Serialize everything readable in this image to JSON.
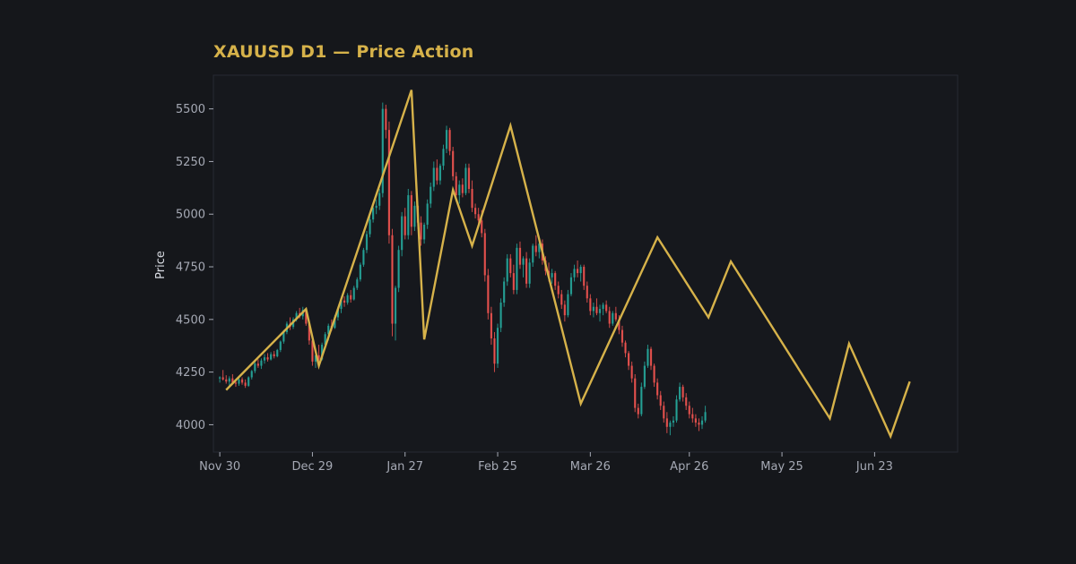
{
  "colors": {
    "background": "#15171b",
    "plot_background": "#16181d",
    "plot_border": "#262a33",
    "title": "#d6b24a",
    "tick_label": "#a5a9b4",
    "up_candle": "#26a69a",
    "down_candle": "#ef5350",
    "swing_line": "#d6b24a"
  },
  "chart_data": {
    "type": "line",
    "title": "XAUUSD D1 — Price Action",
    "ylabel": "Price",
    "xlabel": "",
    "ylim": [
      3870,
      5660
    ],
    "y_ticks": [
      4000,
      4250,
      4500,
      4750,
      5000,
      5250,
      5500
    ],
    "x_ticks": [
      {
        "label": "Nov 30",
        "day": 0
      },
      {
        "label": "Dec 29",
        "day": 29
      },
      {
        "label": "Jan 27",
        "day": 58
      },
      {
        "label": "Feb 25",
        "day": 87
      },
      {
        "label": "Mar 26",
        "day": 116
      },
      {
        "label": "Apr 26",
        "day": 147
      },
      {
        "label": "May 25",
        "day": 176
      },
      {
        "label": "Jun 23",
        "day": 205
      }
    ],
    "xlim_days": [
      -2,
      231
    ],
    "grid": false,
    "series": [
      {
        "kind": "zigzag",
        "points": [
          {
            "day": 2,
            "price": 4165
          },
          {
            "day": 27,
            "price": 4550
          },
          {
            "day": 31,
            "price": 4280
          },
          {
            "day": 60,
            "price": 5590
          },
          {
            "day": 64,
            "price": 4405
          },
          {
            "day": 73,
            "price": 5115
          },
          {
            "day": 79,
            "price": 4850
          },
          {
            "day": 91,
            "price": 5420
          },
          {
            "day": 113,
            "price": 4100
          },
          {
            "day": 137,
            "price": 4890
          },
          {
            "day": 153,
            "price": 4510
          },
          {
            "day": 160,
            "price": 4775
          },
          {
            "day": 191,
            "price": 4030
          },
          {
            "day": 197,
            "price": 4385
          },
          {
            "day": 210,
            "price": 3945
          },
          {
            "day": 216,
            "price": 4205
          }
        ]
      },
      {
        "kind": "candlestick",
        "start_day": 0,
        "candles": [
          [
            4220,
            4230,
            4200,
            4225
          ],
          [
            4225,
            4260,
            4210,
            4215
          ],
          [
            4215,
            4235,
            4195,
            4205
          ],
          [
            4205,
            4230,
            4185,
            4220
          ],
          [
            4220,
            4240,
            4195,
            4200
          ],
          [
            4200,
            4215,
            4180,
            4195
          ],
          [
            4195,
            4225,
            4185,
            4215
          ],
          [
            4215,
            4225,
            4190,
            4200
          ],
          [
            4200,
            4215,
            4175,
            4185
          ],
          [
            4185,
            4230,
            4180,
            4225
          ],
          [
            4225,
            4260,
            4215,
            4255
          ],
          [
            4255,
            4300,
            4245,
            4290
          ],
          [
            4290,
            4310,
            4270,
            4280
          ],
          [
            4280,
            4315,
            4265,
            4305
          ],
          [
            4305,
            4335,
            4290,
            4320
          ],
          [
            4320,
            4340,
            4300,
            4310
          ],
          [
            4310,
            4345,
            4305,
            4335
          ],
          [
            4335,
            4350,
            4315,
            4325
          ],
          [
            4325,
            4360,
            4320,
            4355
          ],
          [
            4355,
            4400,
            4345,
            4395
          ],
          [
            4395,
            4450,
            4385,
            4440
          ],
          [
            4440,
            4490,
            4430,
            4480
          ],
          [
            4480,
            4510,
            4450,
            4465
          ],
          [
            4465,
            4510,
            4455,
            4500
          ],
          [
            4500,
            4540,
            4490,
            4530
          ],
          [
            4530,
            4555,
            4505,
            4515
          ],
          [
            4515,
            4560,
            4500,
            4545
          ],
          [
            4545,
            4550,
            4470,
            4480
          ],
          [
            4480,
            4490,
            4380,
            4400
          ],
          [
            4400,
            4410,
            4280,
            4300
          ],
          [
            4300,
            4340,
            4270,
            4330
          ],
          [
            4330,
            4380,
            4300,
            4310
          ],
          [
            4310,
            4390,
            4305,
            4380
          ],
          [
            4380,
            4440,
            4370,
            4430
          ],
          [
            4430,
            4480,
            4400,
            4470
          ],
          [
            4470,
            4500,
            4445,
            4460
          ],
          [
            4460,
            4520,
            4455,
            4510
          ],
          [
            4510,
            4560,
            4495,
            4550
          ],
          [
            4550,
            4600,
            4530,
            4590
          ],
          [
            4590,
            4610,
            4560,
            4580
          ],
          [
            4580,
            4625,
            4570,
            4615
          ],
          [
            4615,
            4640,
            4580,
            4595
          ],
          [
            4595,
            4660,
            4590,
            4650
          ],
          [
            4650,
            4700,
            4640,
            4690
          ],
          [
            4690,
            4770,
            4680,
            4760
          ],
          [
            4760,
            4840,
            4750,
            4830
          ],
          [
            4830,
            4920,
            4815,
            4905
          ],
          [
            4905,
            4990,
            4890,
            4975
          ],
          [
            4975,
            5050,
            4960,
            5030
          ],
          [
            5030,
            5070,
            5000,
            5040
          ],
          [
            5040,
            5120,
            5020,
            5100
          ],
          [
            5100,
            5530,
            5080,
            5500
          ],
          [
            5500,
            5520,
            5360,
            5400
          ],
          [
            5400,
            5440,
            4860,
            4900
          ],
          [
            4900,
            4930,
            4420,
            4480
          ],
          [
            4480,
            4660,
            4400,
            4650
          ],
          [
            4650,
            4850,
            4630,
            4830
          ],
          [
            4830,
            5010,
            4800,
            4990
          ],
          [
            4990,
            5030,
            4880,
            4900
          ],
          [
            4900,
            5120,
            4880,
            5090
          ],
          [
            5090,
            5110,
            4900,
            4940
          ],
          [
            4940,
            5060,
            4920,
            5040
          ],
          [
            5040,
            5060,
            4930,
            4960
          ],
          [
            4960,
            4990,
            4850,
            4880
          ],
          [
            4880,
            4960,
            4860,
            4950
          ],
          [
            4950,
            5070,
            4930,
            5050
          ],
          [
            5050,
            5150,
            5030,
            5130
          ],
          [
            5130,
            5250,
            5110,
            5220
          ],
          [
            5220,
            5260,
            5140,
            5160
          ],
          [
            5160,
            5240,
            5140,
            5230
          ],
          [
            5230,
            5330,
            5210,
            5310
          ],
          [
            5310,
            5420,
            5290,
            5400
          ],
          [
            5400,
            5410,
            5280,
            5300
          ],
          [
            5300,
            5320,
            5160,
            5180
          ],
          [
            5180,
            5200,
            5060,
            5090
          ],
          [
            5090,
            5160,
            5050,
            5140
          ],
          [
            5140,
            5170,
            5080,
            5100
          ],
          [
            5100,
            5240,
            5090,
            5220
          ],
          [
            5220,
            5240,
            5100,
            5120
          ],
          [
            5120,
            5160,
            5010,
            5030
          ],
          [
            5030,
            5050,
            4980,
            5000
          ],
          [
            5000,
            5030,
            4950,
            4970
          ],
          [
            4970,
            5020,
            4890,
            4910
          ],
          [
            4910,
            4930,
            4680,
            4710
          ],
          [
            4710,
            4740,
            4500,
            4530
          ],
          [
            4530,
            4560,
            4380,
            4410
          ],
          [
            4410,
            4440,
            4250,
            4290
          ],
          [
            4290,
            4480,
            4270,
            4460
          ],
          [
            4460,
            4600,
            4440,
            4580
          ],
          [
            4580,
            4700,
            4560,
            4680
          ],
          [
            4680,
            4810,
            4660,
            4790
          ],
          [
            4790,
            4810,
            4700,
            4720
          ],
          [
            4720,
            4760,
            4620,
            4640
          ],
          [
            4640,
            4860,
            4620,
            4840
          ],
          [
            4840,
            4870,
            4740,
            4760
          ],
          [
            4760,
            4800,
            4700,
            4790
          ],
          [
            4790,
            4820,
            4650,
            4670
          ],
          [
            4670,
            4790,
            4650,
            4770
          ],
          [
            4770,
            4860,
            4750,
            4850
          ],
          [
            4850,
            4900,
            4800,
            4820
          ],
          [
            4820,
            4880,
            4790,
            4860
          ],
          [
            4860,
            4880,
            4760,
            4780
          ],
          [
            4780,
            4800,
            4710,
            4730
          ],
          [
            4730,
            4770,
            4680,
            4700
          ],
          [
            4700,
            4740,
            4670,
            4720
          ],
          [
            4720,
            4730,
            4640,
            4660
          ],
          [
            4660,
            4680,
            4600,
            4620
          ],
          [
            4620,
            4640,
            4550,
            4570
          ],
          [
            4570,
            4590,
            4490,
            4520
          ],
          [
            4520,
            4640,
            4510,
            4620
          ],
          [
            4620,
            4720,
            4610,
            4700
          ],
          [
            4700,
            4760,
            4680,
            4740
          ],
          [
            4740,
            4780,
            4700,
            4720
          ],
          [
            4720,
            4760,
            4680,
            4750
          ],
          [
            4750,
            4760,
            4640,
            4660
          ],
          [
            4660,
            4680,
            4580,
            4600
          ],
          [
            4600,
            4620,
            4520,
            4540
          ],
          [
            4540,
            4580,
            4510,
            4560
          ],
          [
            4560,
            4600,
            4520,
            4530
          ],
          [
            4530,
            4570,
            4490,
            4550
          ],
          [
            4550,
            4580,
            4520,
            4570
          ],
          [
            4570,
            4590,
            4530,
            4540
          ],
          [
            4540,
            4560,
            4460,
            4480
          ],
          [
            4480,
            4540,
            4470,
            4530
          ],
          [
            4530,
            4560,
            4490,
            4500
          ],
          [
            4500,
            4520,
            4430,
            4450
          ],
          [
            4450,
            4470,
            4370,
            4390
          ],
          [
            4390,
            4400,
            4320,
            4340
          ],
          [
            4340,
            4350,
            4260,
            4280
          ],
          [
            4280,
            4300,
            4200,
            4220
          ],
          [
            4220,
            4240,
            4060,
            4080
          ],
          [
            4080,
            4100,
            4030,
            4050
          ],
          [
            4050,
            4200,
            4040,
            4180
          ],
          [
            4180,
            4300,
            4170,
            4280
          ],
          [
            4280,
            4380,
            4270,
            4360
          ],
          [
            4360,
            4370,
            4260,
            4280
          ],
          [
            4280,
            4290,
            4180,
            4200
          ],
          [
            4200,
            4220,
            4120,
            4140
          ],
          [
            4140,
            4160,
            4070,
            4090
          ],
          [
            4090,
            4110,
            4010,
            4030
          ],
          [
            4030,
            4060,
            3960,
            3990
          ],
          [
            3990,
            4020,
            3950,
            4010
          ],
          [
            4010,
            4040,
            3990,
            4020
          ],
          [
            4020,
            4140,
            4010,
            4120
          ],
          [
            4120,
            4200,
            4110,
            4180
          ],
          [
            4180,
            4190,
            4110,
            4130
          ],
          [
            4130,
            4150,
            4070,
            4090
          ],
          [
            4090,
            4110,
            4030,
            4050
          ],
          [
            4050,
            4080,
            4010,
            4030
          ],
          [
            4030,
            4050,
            3990,
            4010
          ],
          [
            4010,
            4030,
            3970,
            4000
          ],
          [
            4000,
            4040,
            3980,
            4020
          ],
          [
            4020,
            4090,
            4010,
            4060
          ]
        ]
      }
    ]
  }
}
